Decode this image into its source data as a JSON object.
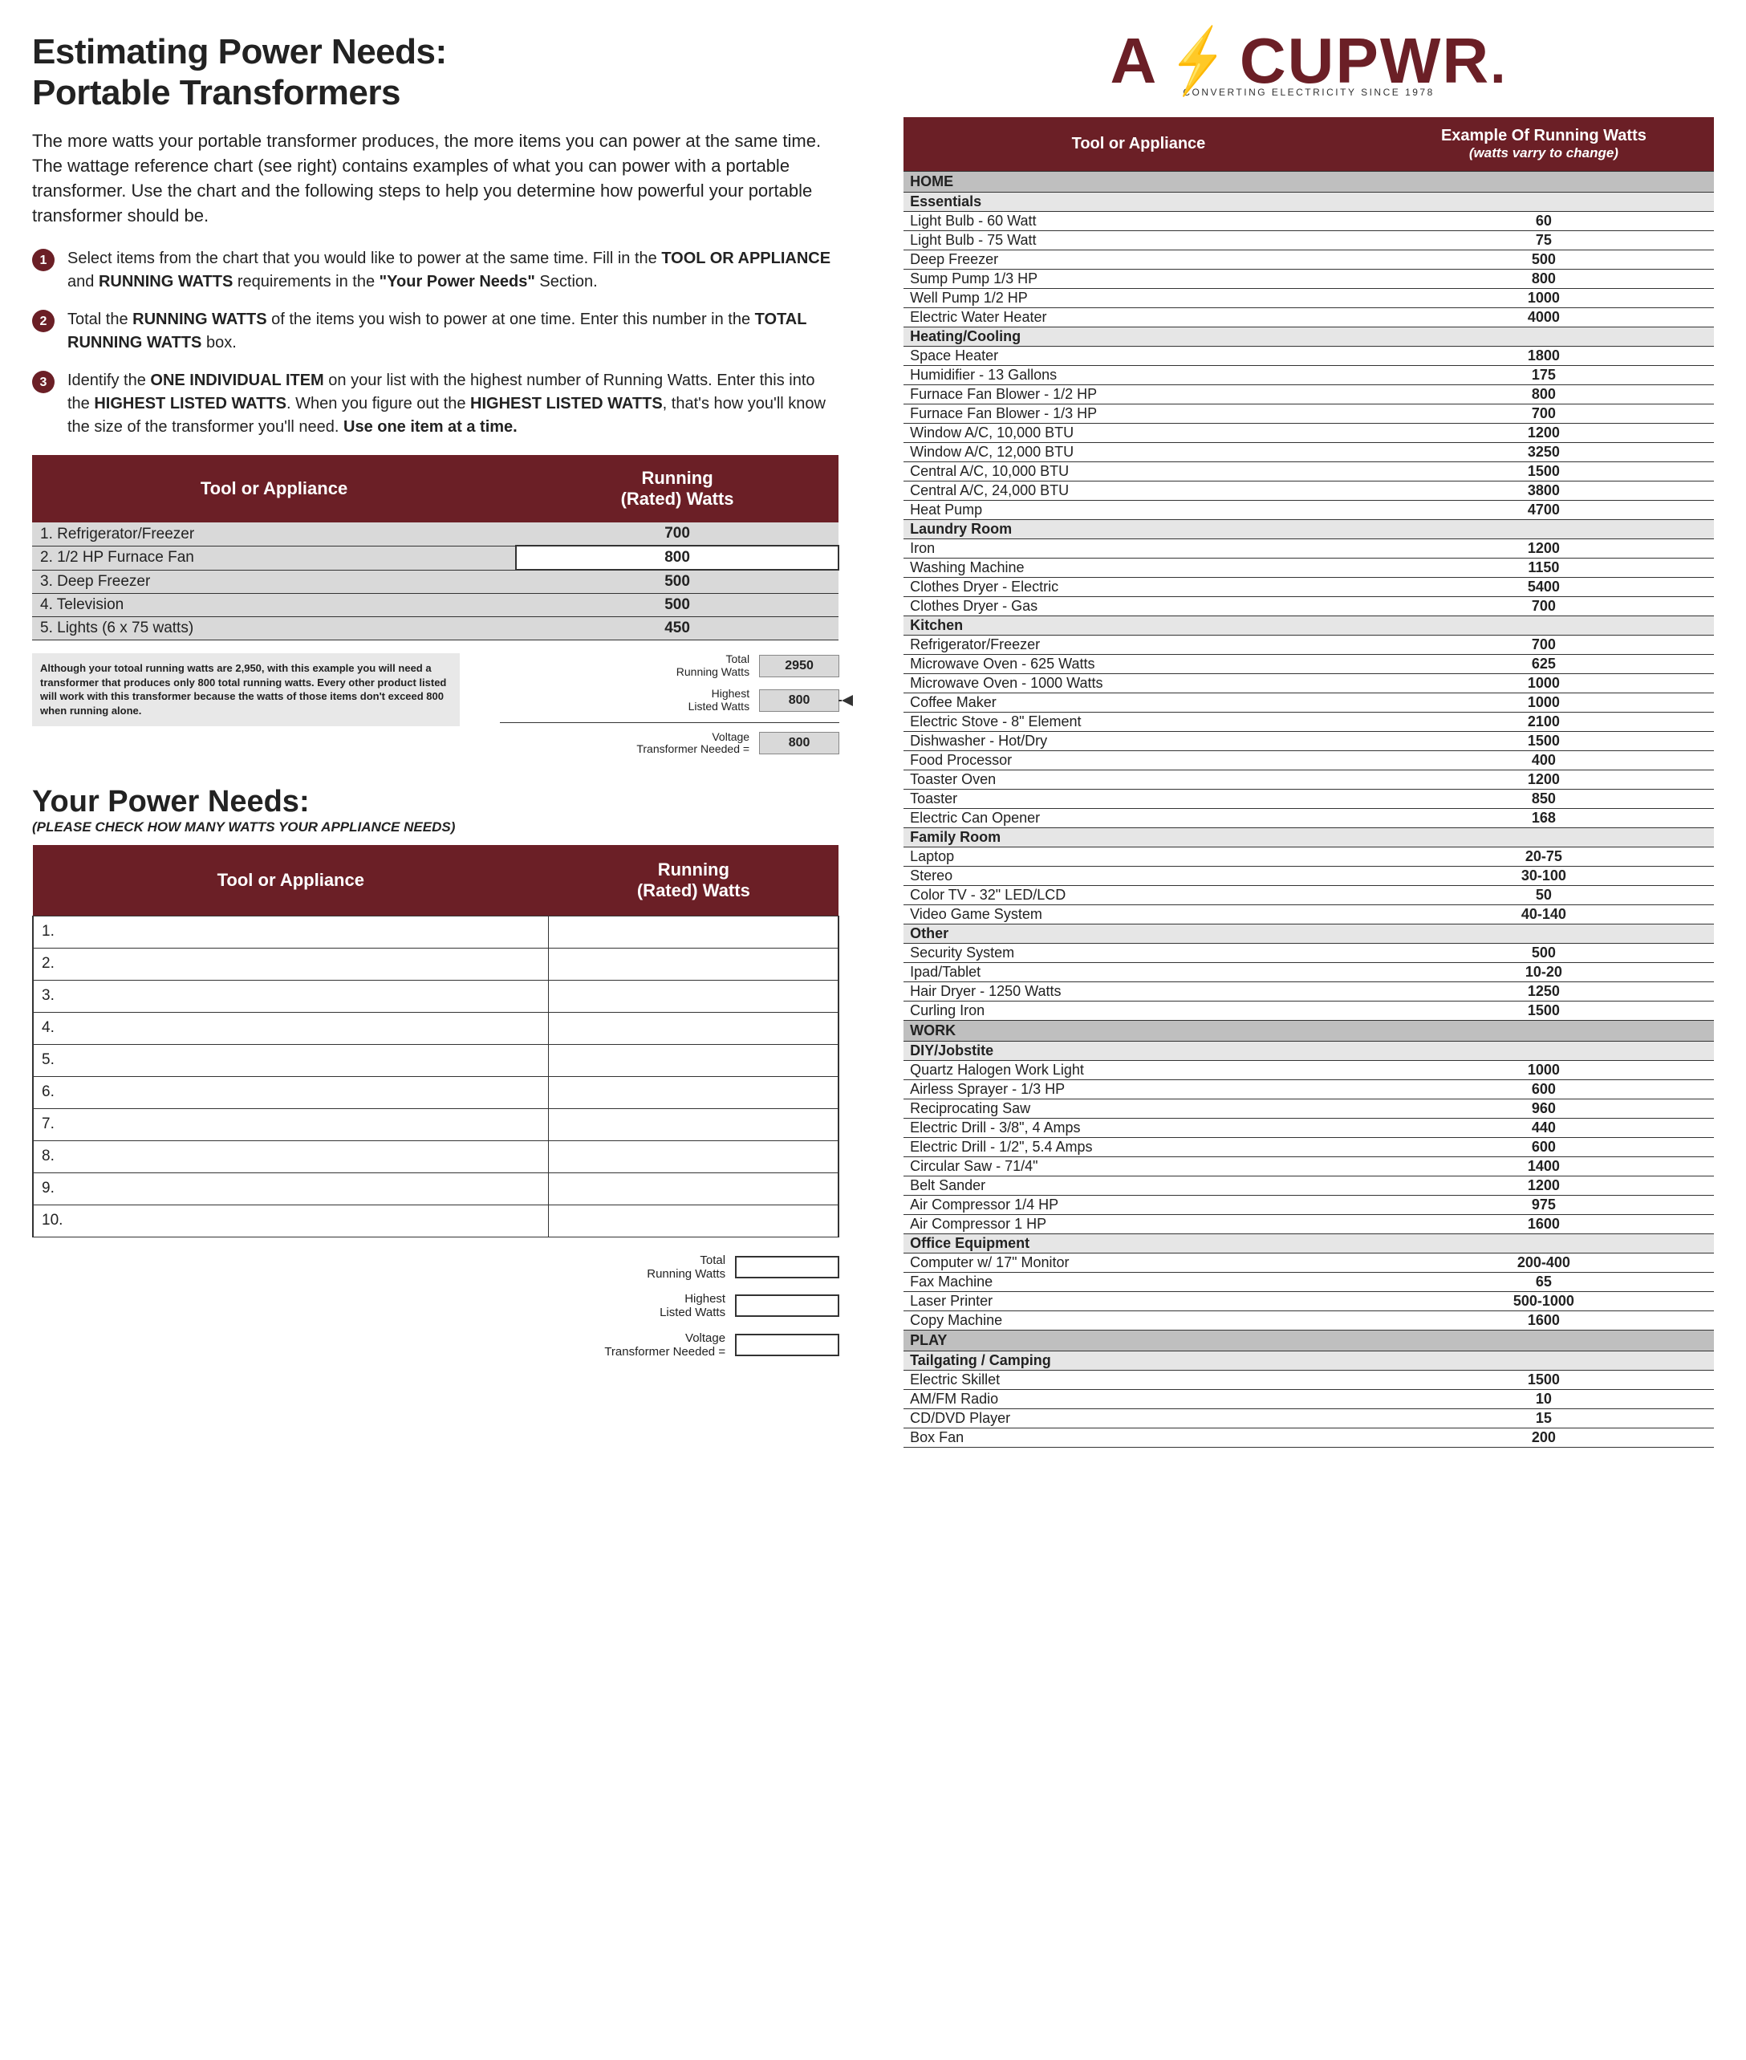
{
  "colors": {
    "brand": "#6b1f26",
    "cat_bg": "#bfbfbf",
    "subcat_bg": "#e6e6e6",
    "row_bg": "#d9d9d9"
  },
  "logo": {
    "text": "ACUPWR.",
    "tagline": "CONVERTING ELECTRICITY SINCE 1978"
  },
  "title": "Estimating Power Needs:\nPortable Transformers",
  "intro": "The more watts your portable transformer produces, the more items you can power at the same time.  The wattage reference chart (see right) contains examples of what you can power with a portable transformer. Use the chart and the following steps to help you determine how powerful your portable transformer should be.",
  "steps": [
    {
      "num": "1",
      "html": "Select items from the chart that you would like to power at the same time.  Fill in the <b>TOOL OR APPLIANCE</b> and <b>RUNNING WATTS</b> requirements in the <b>\"Your Power Needs\"</b> Section."
    },
    {
      "num": "2",
      "html": "Total the <b>RUNNING WATTS</b> of the items you wish to power at one time.  Enter this number in the <b>TOTAL RUNNING WATTS</b> box."
    },
    {
      "num": "3",
      "html": "Identify the <b>ONE INDIVIDUAL ITEM</b> on your list with the highest number of Running Watts.  Enter this into the <b>HIGHEST LISTED WATTS</b>.  When you figure out the <b>HIGHEST LISTED WATTS</b>, that's how you'll know the size of the transformer you'll need. <b style='font-family:Arial'>Use one item at a time.</b>"
    }
  ],
  "example_table": {
    "headers": [
      "Tool or Appliance",
      "Running\n(Rated) Watts"
    ],
    "rows": [
      {
        "label": "1. Refrigerator/Freezer",
        "watts": "700"
      },
      {
        "label": "2. 1/2 HP Furnace Fan",
        "watts": "800",
        "highlight": true
      },
      {
        "label": "3. Deep Freezer",
        "watts": "500"
      },
      {
        "label": "4. Television",
        "watts": "500"
      },
      {
        "label": "5. Lights (6 x 75 watts)",
        "watts": "450"
      }
    ],
    "note": "Although your totoal running watts are 2,950, with this example you will need a transformer that produces only 800 total running watts. Every other product listed will work with this transformer because the watts of those items don't exceed 800 when running alone.",
    "totals": [
      {
        "label": "Total\nRunning Watts",
        "value": "2950"
      },
      {
        "label": "Highest\nListed Watts",
        "value": "800",
        "arrow": true
      },
      {
        "label": "Voltage\nTransformer Needed",
        "value": "800",
        "eq": true,
        "divider_before": true
      }
    ]
  },
  "your_needs": {
    "title": "Your Power Needs:",
    "subtitle": "(PLEASE CHECK HOW MANY WATTS YOUR APPLIANCE NEEDS)",
    "headers": [
      "Tool or Appliance",
      "Running\n(Rated) Watts"
    ],
    "row_count": 10,
    "totals": [
      {
        "label": "Total\nRunning Watts"
      },
      {
        "label": "Highest\nListed Watts"
      },
      {
        "label": "Voltage\nTransformer Needed",
        "eq": true
      }
    ]
  },
  "ref_table": {
    "headers": {
      "left": "Tool or Appliance",
      "right_line1": "Example Of Running Watts",
      "right_line2": "(watts varry to change)"
    },
    "sections": [
      {
        "cat": "HOME",
        "groups": [
          {
            "sub": "Essentials",
            "rows": [
              [
                "Light Bulb - 60 Watt",
                "60"
              ],
              [
                "Light Bulb - 75 Watt",
                "75"
              ],
              [
                "Deep Freezer",
                "500"
              ],
              [
                "Sump Pump 1/3 HP",
                "800"
              ],
              [
                "Well Pump 1/2 HP",
                "1000"
              ],
              [
                "Electric Water Heater",
                "4000"
              ]
            ]
          },
          {
            "sub": "Heating/Cooling",
            "rows": [
              [
                "Space Heater",
                "1800"
              ],
              [
                "Humidifier - 13 Gallons",
                "175"
              ],
              [
                "Furnace Fan Blower - 1/2 HP",
                "800"
              ],
              [
                "Furnace Fan Blower - 1/3 HP",
                "700"
              ],
              [
                "Window A/C, 10,000 BTU",
                "1200"
              ],
              [
                "Window A/C, 12,000 BTU",
                "3250"
              ],
              [
                "Central A/C, 10,000 BTU",
                "1500"
              ],
              [
                "Central A/C, 24,000 BTU",
                "3800"
              ],
              [
                "Heat Pump",
                "4700"
              ]
            ]
          },
          {
            "sub": "Laundry Room",
            "rows": [
              [
                "Iron",
                "1200"
              ],
              [
                "Washing Machine",
                "1150"
              ],
              [
                "Clothes Dryer - Electric",
                "5400"
              ],
              [
                "Clothes Dryer - Gas",
                "700"
              ]
            ]
          },
          {
            "sub": "Kitchen",
            "rows": [
              [
                "Refrigerator/Freezer",
                "700"
              ],
              [
                "Microwave Oven - 625 Watts",
                "625"
              ],
              [
                "Microwave Oven - 1000 Watts",
                "1000"
              ],
              [
                "Coffee Maker",
                "1000"
              ],
              [
                "Electric Stove - 8\" Element",
                "2100"
              ],
              [
                "Dishwasher - Hot/Dry",
                "1500"
              ],
              [
                "Food Processor",
                "400"
              ],
              [
                "Toaster Oven",
                "1200"
              ],
              [
                "Toaster",
                "850"
              ],
              [
                "Electric Can Opener",
                "168"
              ]
            ]
          },
          {
            "sub": "Family Room",
            "rows": [
              [
                "Laptop",
                "20-75"
              ],
              [
                "Stereo",
                "30-100"
              ],
              [
                "Color TV - 32\" LED/LCD",
                "50"
              ],
              [
                "Video Game System",
                "40-140"
              ]
            ]
          },
          {
            "sub": "Other",
            "rows": [
              [
                "Security System",
                "500"
              ],
              [
                "Ipad/Tablet",
                "10-20"
              ],
              [
                "Hair Dryer - 1250 Watts",
                "1250"
              ],
              [
                "Curling Iron",
                "1500"
              ]
            ]
          }
        ]
      },
      {
        "cat": "WORK",
        "groups": [
          {
            "sub": "DIY/Jobstite",
            "rows": [
              [
                "Quartz Halogen Work Light",
                "1000"
              ],
              [
                "Airless Sprayer - 1/3 HP",
                "600"
              ],
              [
                "Reciprocating Saw",
                "960"
              ],
              [
                "Electric Drill - 3/8\", 4 Amps",
                "440"
              ],
              [
                "Electric Drill - 1/2\", 5.4 Amps",
                "600"
              ],
              [
                "Circular Saw - 71/4\"",
                "1400"
              ],
              [
                "Belt Sander",
                "1200"
              ],
              [
                "Air Compressor 1/4 HP",
                "975"
              ],
              [
                "Air Compressor 1 HP",
                "1600"
              ]
            ]
          },
          {
            "sub": "Office Equipment",
            "rows": [
              [
                "Computer w/ 17\" Monitor",
                "200-400"
              ],
              [
                "Fax Machine",
                "65"
              ],
              [
                "Laser Printer",
                "500-1000"
              ],
              [
                "Copy Machine",
                "1600"
              ]
            ]
          }
        ]
      },
      {
        "cat": "PLAY",
        "groups": [
          {
            "sub": "Tailgating / Camping",
            "rows": [
              [
                "Electric Skillet",
                "1500"
              ],
              [
                "AM/FM Radio",
                "10"
              ],
              [
                "CD/DVD Player",
                "15"
              ],
              [
                "Box Fan",
                "200"
              ]
            ]
          }
        ]
      }
    ]
  }
}
